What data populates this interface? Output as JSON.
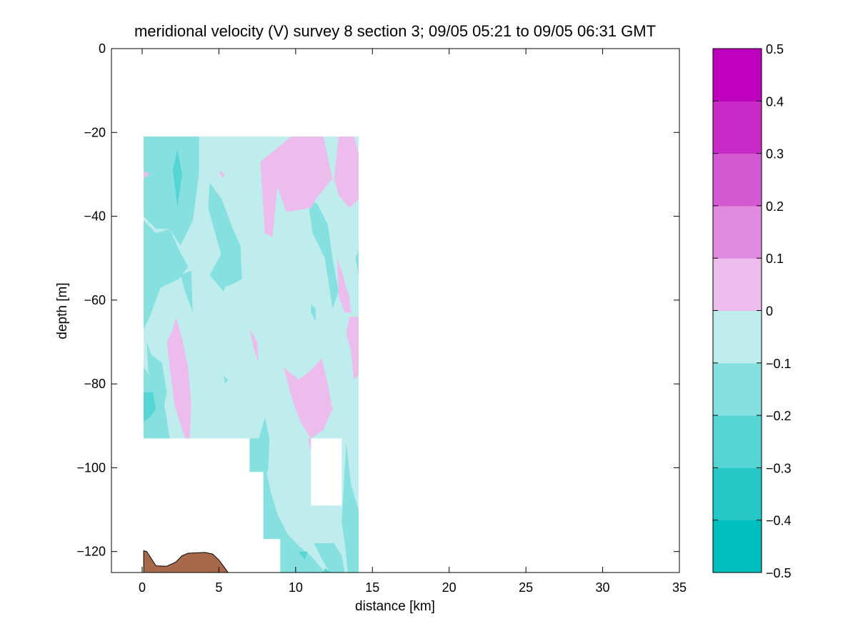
{
  "chart_data": {
    "type": "heatmap",
    "title": "meridional velocity (V) survey 8 section 3; 09/05 05:21 to 09/05 06:31 GMT",
    "xlabel": "distance [km]",
    "ylabel": "depth [m]",
    "xlim": [
      -2,
      35
    ],
    "ylim": [
      -125,
      0
    ],
    "x_ticks": [
      "0",
      "5",
      "10",
      "15",
      "20",
      "25",
      "30",
      "35"
    ],
    "y_ticks": [
      "0",
      "−20",
      "−40",
      "−60",
      "−80",
      "−100",
      "−120"
    ],
    "colorbar": {
      "levels": [
        -0.5,
        -0.4,
        -0.3,
        -0.2,
        -0.1,
        0,
        0.1,
        0.2,
        0.3,
        0.4,
        0.5
      ],
      "tick_labels": [
        "−0.5",
        "−0.4",
        "−0.3",
        "−0.2",
        "−0.1",
        "0",
        "0.1",
        "0.2",
        "0.3",
        "0.4",
        "0.5"
      ],
      "colors": [
        "#00bfbf",
        "#26c7c7",
        "#56d5d5",
        "#86e0e0",
        "#bfeded",
        "#ecbdec",
        "#e08ae0",
        "#d259d2",
        "#c72ac7",
        "#bf00bf"
      ]
    },
    "bottom_color": "#a8694a",
    "section": {
      "base_level_color": "#bfeded",
      "data_region": [
        [
          0.1,
          -21
        ],
        [
          14.1,
          -21
        ],
        [
          14.1,
          -125
        ],
        [
          9.0,
          -125
        ],
        [
          9.0,
          -117
        ],
        [
          7.9,
          -117
        ],
        [
          7.9,
          -101
        ],
        [
          7.0,
          -101
        ],
        [
          7.0,
          -93
        ],
        [
          0.1,
          -93
        ]
      ],
      "gap_region": [
        [
          11.0,
          -93
        ],
        [
          13.0,
          -93
        ],
        [
          13.0,
          -109
        ],
        [
          11.0,
          -109
        ]
      ],
      "patches": [
        {
          "level": -0.2,
          "points": [
            [
              0.1,
              -21
            ],
            [
              3.7,
              -21
            ],
            [
              3.7,
              -30
            ],
            [
              3.3,
              -41
            ],
            [
              2.5,
              -47
            ],
            [
              1.8,
              -43
            ],
            [
              0.9,
              -43
            ],
            [
              0.1,
              -40
            ]
          ]
        },
        {
          "level": -0.3,
          "points": [
            [
              2.0,
              -29
            ],
            [
              2.3,
              -24
            ],
            [
              2.6,
              -30
            ],
            [
              2.3,
              -38
            ]
          ]
        },
        {
          "level": -0.2,
          "points": [
            [
              0.1,
              -41
            ],
            [
              0.9,
              -44
            ],
            [
              1.8,
              -43
            ],
            [
              2.4,
              -48
            ],
            [
              3.0,
              -52
            ],
            [
              2.4,
              -55
            ],
            [
              1.2,
              -57
            ],
            [
              0.9,
              -60
            ],
            [
              0.5,
              -64
            ],
            [
              0.1,
              -67
            ]
          ]
        },
        {
          "level": -0.2,
          "points": [
            [
              2.5,
              -54
            ],
            [
              3.2,
              -53
            ],
            [
              3.3,
              -63
            ],
            [
              2.8,
              -58
            ]
          ]
        },
        {
          "level": -0.2,
          "points": [
            [
              4.4,
              -32
            ],
            [
              5.2,
              -36
            ],
            [
              5.8,
              -42
            ],
            [
              6.4,
              -47
            ],
            [
              6.5,
              -55
            ],
            [
              6.0,
              -56
            ],
            [
              5.3,
              -57
            ],
            [
              5.4,
              -52
            ],
            [
              4.9,
              -46
            ],
            [
              4.3,
              -38
            ]
          ]
        },
        {
          "level": -0.2,
          "points": [
            [
              4.4,
              -54
            ],
            [
              5.3,
              -48
            ],
            [
              5.7,
              -54
            ],
            [
              5.3,
              -58
            ]
          ]
        },
        {
          "level": -0.2,
          "points": [
            [
              10.8,
              -36
            ],
            [
              11.4,
              -37
            ],
            [
              12.1,
              -42
            ],
            [
              12.4,
              -50
            ],
            [
              12.8,
              -58
            ],
            [
              12.4,
              -62
            ],
            [
              11.9,
              -50
            ],
            [
              11.1,
              -44
            ]
          ]
        },
        {
          "level": -0.2,
          "points": [
            [
              13.9,
              -50
            ],
            [
              14.1,
              -48
            ],
            [
              14.1,
              -54
            ]
          ]
        },
        {
          "level": 0.0,
          "points": [
            [
              7.7,
              -27
            ],
            [
              9.7,
              -21
            ],
            [
              11.8,
              -21
            ],
            [
              12.4,
              -31
            ],
            [
              11.3,
              -36
            ],
            [
              11.0,
              -38
            ],
            [
              9.4,
              -39
            ],
            [
              8.8,
              -33
            ],
            [
              8.5,
              -45
            ],
            [
              8.0,
              -44
            ]
          ]
        },
        {
          "level": 0.0,
          "points": [
            [
              12.8,
              -21
            ],
            [
              13.8,
              -21
            ],
            [
              14.1,
              -25
            ],
            [
              14.1,
              -36
            ],
            [
              13.5,
              -38
            ],
            [
              12.8,
              -35
            ],
            [
              12.5,
              -31
            ]
          ]
        },
        {
          "level": 0.0,
          "points": [
            [
              0.1,
              -29
            ],
            [
              0.5,
              -30
            ],
            [
              0.1,
              -31
            ]
          ]
        },
        {
          "level": 0.0,
          "points": [
            [
              5.0,
              -29
            ],
            [
              5.4,
              -30
            ],
            [
              5.2,
              -31
            ]
          ]
        },
        {
          "level": 0.0,
          "points": [
            [
              12.7,
              -50
            ],
            [
              13.0,
              -53
            ],
            [
              13.3,
              -57
            ],
            [
              13.5,
              -59
            ],
            [
              13.6,
              -63
            ],
            [
              13.2,
              -63
            ],
            [
              12.8,
              -59
            ]
          ]
        },
        {
          "level": 0.0,
          "points": [
            [
              13.5,
              -64
            ],
            [
              14.1,
              -64
            ],
            [
              14.1,
              -78
            ],
            [
              13.8,
              -79
            ],
            [
              13.6,
              -72
            ],
            [
              13.3,
              -68
            ]
          ]
        },
        {
          "level": -0.2,
          "points": [
            [
              11.0,
              -61
            ],
            [
              11.3,
              -62
            ],
            [
              11.3,
              -65
            ],
            [
              11.0,
              -63
            ]
          ]
        },
        {
          "level": 0.0,
          "points": [
            [
              1.6,
              -70
            ],
            [
              2.0,
              -67
            ],
            [
              2.2,
              -64
            ],
            [
              2.6,
              -69
            ],
            [
              3.0,
              -76
            ],
            [
              3.2,
              -85
            ],
            [
              3.1,
              -93
            ],
            [
              2.8,
              -93
            ],
            [
              2.1,
              -85
            ],
            [
              1.9,
              -79
            ]
          ]
        },
        {
          "level": -0.2,
          "points": [
            [
              0.1,
              -76
            ],
            [
              0.9,
              -80
            ],
            [
              1.5,
              -86
            ],
            [
              1.8,
              -93
            ],
            [
              0.1,
              -93
            ]
          ]
        },
        {
          "level": -0.2,
          "points": [
            [
              0.3,
              -70
            ],
            [
              0.6,
              -73
            ],
            [
              1.3,
              -75
            ],
            [
              1.6,
              -82
            ],
            [
              1.4,
              -86
            ],
            [
              0.9,
              -82
            ],
            [
              0.4,
              -77
            ]
          ]
        },
        {
          "level": -0.3,
          "points": [
            [
              0.1,
              -82
            ],
            [
              0.7,
              -82
            ],
            [
              0.9,
              -86
            ],
            [
              0.5,
              -88
            ],
            [
              0.1,
              -89
            ]
          ]
        },
        {
          "level": 0.0,
          "points": [
            [
              7.0,
              -67
            ],
            [
              7.2,
              -68
            ],
            [
              7.5,
              -70
            ],
            [
              7.6,
              -75
            ],
            [
              7.3,
              -72
            ]
          ]
        },
        {
          "level": -0.2,
          "points": [
            [
              5.3,
              -78
            ],
            [
              5.6,
              -79
            ],
            [
              5.4,
              -80
            ]
          ]
        },
        {
          "level": 0.0,
          "points": [
            [
              9.2,
              -76
            ],
            [
              10.2,
              -79
            ],
            [
              10.9,
              -77
            ],
            [
              11.7,
              -74
            ],
            [
              12.1,
              -80
            ],
            [
              12.4,
              -86
            ],
            [
              11.8,
              -91
            ],
            [
              11.0,
              -93
            ],
            [
              10.3,
              -89
            ],
            [
              9.8,
              -84
            ]
          ]
        },
        {
          "level": 0.0,
          "points": [
            [
              10.8,
              -93
            ],
            [
              11.3,
              -93
            ],
            [
              11.0,
              -96
            ]
          ]
        },
        {
          "level": -0.2,
          "points": [
            [
              7.0,
              -93
            ],
            [
              7.6,
              -93
            ],
            [
              8.0,
              -88
            ],
            [
              8.3,
              -93
            ],
            [
              8.2,
              -101
            ],
            [
              7.0,
              -101
            ]
          ]
        },
        {
          "level": -0.2,
          "points": [
            [
              8.1,
              -101
            ],
            [
              8.4,
              -106
            ],
            [
              8.8,
              -111
            ],
            [
              9.5,
              -116
            ],
            [
              10.3,
              -119
            ],
            [
              11.0,
              -121
            ],
            [
              11.9,
              -125
            ],
            [
              9.0,
              -125
            ],
            [
              9.0,
              -117
            ],
            [
              7.9,
              -117
            ],
            [
              7.9,
              -101
            ]
          ]
        },
        {
          "level": -0.2,
          "points": [
            [
              13.3,
              -94
            ],
            [
              13.6,
              -104
            ],
            [
              14.1,
              -110
            ],
            [
              14.1,
              -125
            ],
            [
              13.4,
              -125
            ],
            [
              13.2,
              -118
            ],
            [
              13.0,
              -113
            ]
          ]
        },
        {
          "level": -0.2,
          "points": [
            [
              11.2,
              -118
            ],
            [
              11.8,
              -118
            ],
            [
              12.5,
              -118
            ],
            [
              13.0,
              -121
            ],
            [
              13.2,
              -125
            ],
            [
              12.2,
              -125
            ],
            [
              11.6,
              -121
            ]
          ]
        },
        {
          "level": -0.3,
          "points": [
            [
              10.2,
              -120
            ],
            [
              10.8,
              -120
            ],
            [
              10.6,
              -122
            ]
          ]
        },
        {
          "level": -0.3,
          "points": [
            [
              11.9,
              -124
            ],
            [
              12.3,
              -125
            ],
            [
              11.8,
              -125
            ]
          ]
        }
      ]
    },
    "bathymetry": [
      [
        0.1,
        -125
      ],
      [
        0.1,
        -119.8
      ],
      [
        0.3,
        -120
      ],
      [
        0.9,
        -123.4
      ],
      [
        1.6,
        -123.5
      ],
      [
        2.2,
        -122.5
      ],
      [
        2.6,
        -121.0
      ],
      [
        3.0,
        -120.4
      ],
      [
        3.6,
        -120.3
      ],
      [
        4.1,
        -120.2
      ],
      [
        4.6,
        -120.6
      ],
      [
        5.0,
        -122
      ],
      [
        5.4,
        -124
      ],
      [
        5.6,
        -125
      ]
    ]
  }
}
